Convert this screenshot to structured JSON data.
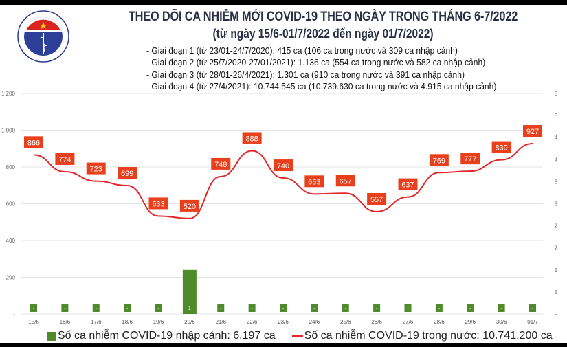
{
  "header": {
    "title": "THEO DÕI CA NHIỄM MỚI COVID-19 THEO NGÀY TRONG THÁNG 6-7/2022",
    "subtitle": "(từ ngày 15/6-01/7/2022 đến ngày 01/7/2022)",
    "logo_text": "BỘ Y TẾ · MINISTRY OF HEALTH",
    "notes": [
      "- Giai đoạn 1 (từ 23/01-24/7/2020): 415 ca (106 ca trong nước và 309 ca nhập cảnh)",
      "- Giai đoạn 2 (từ 25/7/2020-27/01/2021): 1.136 ca (554 ca trong nước và 582 ca nhập cảnh)",
      "- Giai đoạn 3 (từ 28/01-26/4/2021): 1.301 ca (910 ca trong nước và 391 ca nhập cảnh)",
      "- Giai đoạn 4 (từ 27/4/2021): 10.744.545 ca (10.739.630 ca trong nước và 4.915 ca nhập cảnh)"
    ]
  },
  "colors": {
    "bar": "#4f8a2b",
    "line": "#e3262a",
    "label_bg": "#e8401c",
    "title": "#2a2f45"
  },
  "chart_data": {
    "type": "bar+line",
    "categories": [
      "15/6",
      "16/6",
      "17/6",
      "18/6",
      "19/6",
      "20/6",
      "21/6",
      "22/6",
      "23/6",
      "24/6",
      "25/6",
      "26/6",
      "27/6",
      "28/6",
      "29/6",
      "30/6",
      "01/7"
    ],
    "series": [
      {
        "name": "Số ca nhiễm COVID-19 nhập cảnh: 6.197 ca",
        "type": "bar",
        "axis": "right",
        "values": [
          0,
          0,
          0,
          0,
          0,
          1,
          0,
          0,
          0,
          0,
          0,
          0,
          0,
          0,
          0,
          0,
          0
        ],
        "labels": [
          "-",
          "-",
          "-",
          "-",
          "-",
          "1",
          "-",
          "-",
          "-",
          "-",
          "-",
          "-",
          "-",
          "-",
          "-",
          "-",
          "-"
        ]
      },
      {
        "name": "Số ca nhiễm COVID-19 trong nước: 10.741.200 ca",
        "type": "line",
        "axis": "left",
        "values": [
          866,
          774,
          723,
          699,
          533,
          520,
          748,
          888,
          740,
          653,
          657,
          557,
          637,
          769,
          777,
          839,
          927
        ]
      }
    ],
    "left_axis": {
      "ylim": [
        0,
        1200
      ],
      "ticks": [
        "-",
        "200",
        "400",
        "600",
        "800",
        "1.000",
        "1.200"
      ]
    },
    "right_axis": {
      "ylim": [
        0,
        5
      ],
      "ticks": [
        "-",
        "1",
        "1",
        "2",
        "2",
        "3",
        "3",
        "4",
        "4",
        "5",
        "5"
      ]
    },
    "grid": true,
    "legend": "bottom"
  }
}
